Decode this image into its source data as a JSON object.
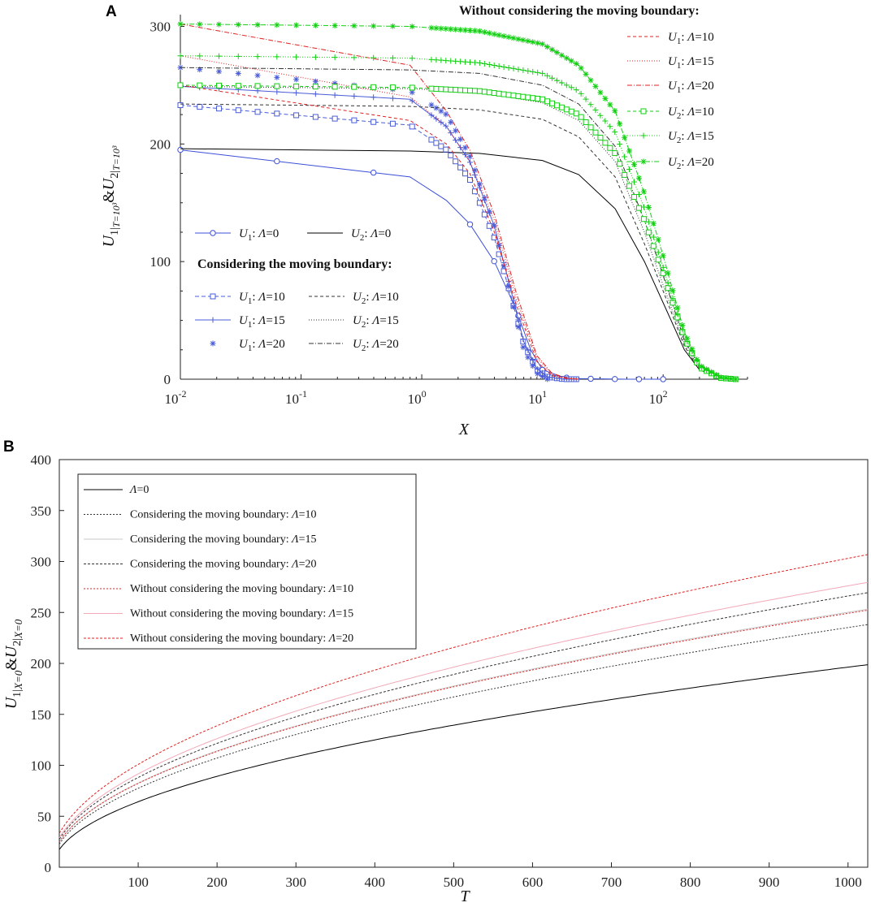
{
  "chart_data": [
    {
      "panel_label": "A",
      "type": "line",
      "x_scale": "log",
      "xlim": [
        0.01,
        500
      ],
      "ylim": [
        0,
        310
      ],
      "xlabel": "X",
      "ylabel": "U1|T=10³ & U2|T=10³",
      "x_ticks": [
        {
          "base": "10",
          "exp": "-2"
        },
        {
          "base": "10",
          "exp": "-1"
        },
        {
          "base": "10",
          "exp": "0"
        },
        {
          "base": "10",
          "exp": "1"
        },
        {
          "base": "10",
          "exp": "2"
        }
      ],
      "y_ticks": [
        0,
        100,
        200,
        300
      ],
      "legend_headers": {
        "without": "Without considering the moving boundary:",
        "with": "Considering the moving boundary:"
      },
      "series": [
        {
          "var": "U",
          "sub": "1",
          "lambda": "0",
          "group": "base",
          "color": "#3b4fd8",
          "marker": "circle",
          "dash": "",
          "x": [
            0.01,
            0.8,
            1.6,
            2.5,
            4,
            6,
            8,
            10,
            15,
            20,
            50,
            100
          ],
          "y": [
            195,
            172,
            152,
            132,
            100,
            60,
            25,
            8,
            1.5,
            0.5,
            0,
            0
          ]
        },
        {
          "var": "U",
          "sub": "2",
          "lambda": "0",
          "group": "base",
          "color": "#000000",
          "marker": "none",
          "dash": "",
          "x": [
            0.01,
            0.8,
            3,
            10,
            20,
            40,
            70,
            100,
            150,
            200,
            300,
            400
          ],
          "y": [
            196,
            194,
            192,
            186,
            174,
            145,
            100,
            65,
            25,
            8,
            1,
            0
          ]
        },
        {
          "var": "U",
          "sub": "1",
          "lambda": "10",
          "group": "with",
          "color": "#4a5cd8",
          "marker": "square",
          "dash": "5,3",
          "x": [
            0.01,
            0.8,
            1.6,
            2.5,
            4,
            5.5,
            7,
            9,
            11,
            15,
            20
          ],
          "y": [
            233,
            216,
            195,
            170,
            120,
            70,
            30,
            8,
            2,
            0,
            0
          ]
        },
        {
          "var": "U",
          "sub": "1",
          "lambda": "15",
          "group": "with",
          "color": "#4a5cd8",
          "marker": "plus",
          "dash": "",
          "x": [
            0.01,
            0.8,
            1.6,
            2.5,
            4,
            5.5,
            7,
            9,
            11,
            15,
            20
          ],
          "y": [
            249,
            238,
            215,
            185,
            130,
            75,
            32,
            9,
            2,
            0,
            0
          ]
        },
        {
          "var": "U",
          "sub": "1",
          "lambda": "20",
          "group": "with",
          "color": "#4a5cd8",
          "marker": "star",
          "dash": "none",
          "x": [
            0.01,
            0.8,
            1.6,
            2.5,
            4,
            5.5,
            7,
            9,
            11
          ],
          "y": [
            265,
            245,
            225,
            190,
            130,
            70,
            25,
            5,
            0
          ]
        },
        {
          "var": "U",
          "sub": "2",
          "lambda": "10",
          "group": "with",
          "color": "#333333",
          "marker": "none",
          "dash": "4,3",
          "x": [
            0.01,
            0.8,
            3,
            10,
            20,
            40,
            70,
            100,
            150,
            200,
            300,
            400
          ],
          "y": [
            234,
            232,
            229,
            221,
            206,
            172,
            115,
            75,
            28,
            8,
            1,
            0
          ]
        },
        {
          "var": "U",
          "sub": "2",
          "lambda": "15",
          "group": "with",
          "color": "#333333",
          "marker": "none",
          "dash": "1,2",
          "x": [
            0.01,
            0.8,
            3,
            10,
            20,
            40,
            70,
            100,
            150,
            200,
            300,
            400
          ],
          "y": [
            249,
            247,
            244,
            235,
            220,
            185,
            125,
            80,
            30,
            9,
            1,
            0
          ]
        },
        {
          "var": "U",
          "sub": "2",
          "lambda": "20",
          "group": "with",
          "color": "#333333",
          "marker": "none",
          "dash": "6,2,1,2",
          "x": [
            0.01,
            0.8,
            3,
            10,
            20,
            40,
            70,
            100,
            150,
            200,
            300,
            400
          ],
          "y": [
            265,
            263,
            260,
            250,
            234,
            198,
            135,
            88,
            33,
            10,
            1,
            0
          ]
        },
        {
          "var": "U",
          "sub": "1",
          "lambda": "10",
          "group": "without",
          "color": "#e02020",
          "marker": "none",
          "dash": "4,3",
          "x": [
            0.01,
            0.8,
            1.6,
            2.5,
            4,
            6,
            9,
            12,
            16,
            20
          ],
          "y": [
            250,
            220,
            200,
            175,
            125,
            65,
            15,
            3,
            0.5,
            0
          ]
        },
        {
          "var": "U",
          "sub": "1",
          "lambda": "15",
          "group": "without",
          "color": "#e02020",
          "marker": "none",
          "dash": "1,2",
          "x": [
            0.01,
            0.8,
            1.6,
            2.5,
            4,
            6,
            9,
            12,
            16,
            20
          ],
          "y": [
            275,
            240,
            215,
            185,
            135,
            70,
            18,
            4,
            0.5,
            0
          ]
        },
        {
          "var": "U",
          "sub": "1",
          "lambda": "20",
          "group": "without",
          "color": "#e02020",
          "marker": "none",
          "dash": "6,2,1,2",
          "x": [
            0.01,
            0.8,
            1.6,
            2.5,
            4,
            6,
            9,
            12,
            16,
            20
          ],
          "y": [
            302,
            267,
            228,
            195,
            140,
            75,
            20,
            5,
            1,
            0
          ]
        },
        {
          "var": "U",
          "sub": "2",
          "lambda": "10",
          "group": "without",
          "color": "#10d010",
          "marker": "square",
          "dash": "4,3",
          "x": [
            0.01,
            0.8,
            3,
            10,
            20,
            40,
            70,
            100,
            150,
            200,
            300,
            400
          ],
          "y": [
            250,
            248,
            245,
            238,
            225,
            192,
            135,
            90,
            35,
            10,
            1,
            0
          ]
        },
        {
          "var": "U",
          "sub": "2",
          "lambda": "15",
          "group": "without",
          "color": "#10d010",
          "marker": "plus",
          "dash": "1,2",
          "x": [
            0.01,
            0.8,
            3,
            10,
            20,
            40,
            70,
            100,
            150,
            200,
            300,
            400
          ],
          "y": [
            275,
            273,
            269,
            260,
            245,
            210,
            145,
            95,
            37,
            11,
            1,
            0
          ]
        },
        {
          "var": "U",
          "sub": "2",
          "lambda": "20",
          "group": "without",
          "color": "#10d010",
          "marker": "star",
          "dash": "6,2,1,2",
          "x": [
            0.01,
            0.8,
            3,
            10,
            20,
            40,
            70,
            100,
            150,
            200,
            300,
            400
          ],
          "y": [
            302,
            300,
            296,
            285,
            267,
            228,
            158,
            105,
            40,
            12,
            1.5,
            0
          ]
        }
      ]
    },
    {
      "panel_label": "B",
      "type": "line",
      "xlim": [
        0,
        1025
      ],
      "ylim": [
        0,
        400
      ],
      "xlabel": "T",
      "ylabel": "U1|X=0 & U2|X=0",
      "x_ticks": [
        100,
        200,
        300,
        400,
        500,
        600,
        700,
        800,
        900,
        1000
      ],
      "y_ticks": [
        0,
        50,
        100,
        150,
        200,
        250,
        300,
        350,
        400
      ],
      "series": [
        {
          "name": "Λ=0",
          "color": "#000000",
          "dash": "",
          "end_value": 198
        },
        {
          "name": "Considering the moving boundary: Λ=10",
          "color": "#333333",
          "dash": "2,2",
          "end_value": 237
        },
        {
          "name": "Considering the moving boundary: Λ=15",
          "color": "#c8c8c8",
          "dash": "",
          "end_value": 252
        },
        {
          "name": "Considering the moving boundary: Λ=20",
          "color": "#333333",
          "dash": "3,2",
          "end_value": 268
        },
        {
          "name": "Without considering the moving boundary: Λ=10",
          "color": "#e02020",
          "dash": "2,2",
          "end_value": 251
        },
        {
          "name": "Without considering the moving boundary: Λ=15",
          "color": "#f2a9b8",
          "dash": "",
          "end_value": 278
        },
        {
          "name": "Without considering the moving boundary: Λ=20",
          "color": "#e02020",
          "dash": "3,2",
          "end_value": 305
        }
      ]
    }
  ]
}
